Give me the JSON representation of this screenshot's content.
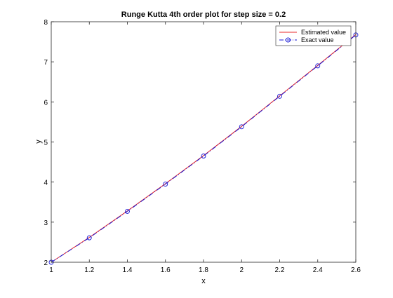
{
  "chart_data": {
    "type": "line",
    "title": "Runge Kutta 4th order plot for step size = 0.2",
    "xlabel": "x",
    "ylabel": "y",
    "xlim": [
      1,
      2.6
    ],
    "ylim": [
      2,
      8
    ],
    "xticks": [
      1,
      1.2,
      1.4,
      1.6,
      1.8,
      2,
      2.2,
      2.4,
      2.6
    ],
    "yticks": [
      2,
      3,
      4,
      5,
      6,
      7,
      8
    ],
    "grid": false,
    "legend_position": "top-right",
    "series": [
      {
        "name": "Estimated value",
        "style": "solid",
        "marker": "none",
        "color": "#e8282b",
        "x": [
          1,
          1.2,
          1.4,
          1.6,
          1.8,
          2,
          2.2,
          2.4,
          2.6
        ],
        "y": [
          2,
          2.62,
          3.28,
          3.96,
          4.66,
          5.39,
          6.15,
          6.91,
          7.68
        ]
      },
      {
        "name": "Exact value",
        "style": "dash-dot",
        "marker": "circle",
        "color": "#1a1ad6",
        "x": [
          1,
          1.2,
          1.4,
          1.6,
          1.8,
          2,
          2.2,
          2.4,
          2.6
        ],
        "y": [
          2,
          2.61,
          3.27,
          3.95,
          4.65,
          5.38,
          6.14,
          6.9,
          7.67
        ]
      }
    ]
  }
}
